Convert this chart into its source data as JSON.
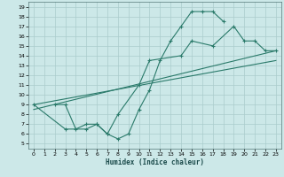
{
  "xlabel": "Humidex (Indice chaleur)",
  "background_color": "#cce8e8",
  "grid_color": "#aacccc",
  "line_color": "#2a7a6a",
  "xlim": [
    -0.5,
    23.5
  ],
  "ylim": [
    4.5,
    19.5
  ],
  "xticks": [
    0,
    1,
    2,
    3,
    4,
    5,
    6,
    7,
    8,
    9,
    10,
    11,
    12,
    13,
    14,
    15,
    16,
    17,
    18,
    19,
    20,
    21,
    22,
    23
  ],
  "yticks": [
    5,
    6,
    7,
    8,
    9,
    10,
    11,
    12,
    13,
    14,
    15,
    16,
    17,
    18,
    19
  ],
  "line1_x": [
    2,
    3,
    4,
    5,
    6,
    7,
    8,
    9,
    10,
    11,
    12,
    13,
    14,
    15,
    16,
    17,
    18
  ],
  "line1_y": [
    9,
    9,
    6.5,
    7,
    7,
    6,
    5.5,
    6,
    8.5,
    10.5,
    13.5,
    15.5,
    17,
    18.5,
    18.5,
    18.5,
    17.5
  ],
  "line2_x": [
    0,
    3,
    5,
    6,
    7,
    8,
    10,
    11,
    14,
    15,
    17,
    19,
    20,
    21,
    22,
    23
  ],
  "line2_y": [
    9,
    6.5,
    6.5,
    7,
    6,
    8,
    11,
    13.5,
    14,
    15.5,
    15,
    17,
    15.5,
    15.5,
    14.5,
    14.5
  ],
  "line3_x": [
    0,
    23
  ],
  "line3_y": [
    9,
    13.5
  ],
  "line4_x": [
    0,
    23
  ],
  "line4_y": [
    8.5,
    14.5
  ]
}
